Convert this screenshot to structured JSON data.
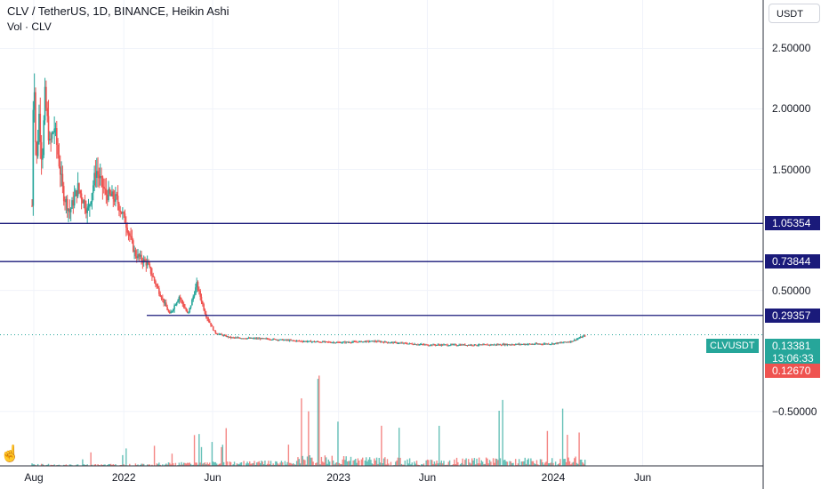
{
  "header": {
    "title": "CLV / TetherUS, 1D, BINANCE, Heikin Ashi",
    "subtitle": "Vol · CLV",
    "currency_button": "USDT"
  },
  "colors": {
    "up": "#26a69a",
    "down": "#ef5350",
    "level_line": "#1a1a7a",
    "last_price": "#26a69a",
    "prev_close": "#ef5350",
    "grid": "#f0f3fa"
  },
  "icons": {
    "cursor": "hand-pointer-icon"
  },
  "chart_data": {
    "type": "candlestick",
    "symbol": "CLVUSDT",
    "chart_style": "Heikin Ashi",
    "interval": "1D",
    "exchange": "BINANCE",
    "x_tick_labels": [
      "Aug",
      "2022",
      "Jun",
      "2023",
      "Jun",
      "2024",
      "Jun"
    ],
    "x_tick_months": [
      "2021-08",
      "2022-01",
      "2022-06",
      "2023-01",
      "2023-06",
      "2024-01",
      "2024-06"
    ],
    "y_tick_labels": [
      "2.50000",
      "2.00000",
      "1.50000",
      "0.50000",
      "−0.50000"
    ],
    "y_ticks": [
      2.5,
      2.0,
      1.5,
      0.5,
      -0.5
    ],
    "ylim": [
      -0.95,
      2.9
    ],
    "grid": true,
    "horizontal_levels": [
      {
        "label": "1.05354",
        "value": 1.05354,
        "from": "2021-07"
      },
      {
        "label": "0.73844",
        "value": 0.73844,
        "from": "2021-07"
      },
      {
        "label": "0.29357",
        "value": 0.29357,
        "from": "2022-04"
      }
    ],
    "last_price": {
      "value": 0.13381,
      "label": "0.13381",
      "countdown": "13:06:33"
    },
    "prev_close": {
      "value": 0.1267,
      "label": "0.12670"
    },
    "price_path": [
      [
        "2021-07-29",
        1.2
      ],
      [
        "2021-08-01",
        2.45
      ],
      [
        "2021-08-05",
        1.5
      ],
      [
        "2021-08-10",
        1.95
      ],
      [
        "2021-08-15",
        1.55
      ],
      [
        "2021-08-20",
        2.1
      ],
      [
        "2021-08-28",
        1.7
      ],
      [
        "2021-09-05",
        1.85
      ],
      [
        "2021-09-20",
        1.3
      ],
      [
        "2021-10-01",
        1.15
      ],
      [
        "2021-10-15",
        1.35
      ],
      [
        "2021-11-01",
        1.15
      ],
      [
        "2021-11-15",
        1.5
      ],
      [
        "2021-12-01",
        1.3
      ],
      [
        "2021-12-20",
        1.25
      ],
      [
        "2022-01-05",
        1.05
      ],
      [
        "2022-01-20",
        0.8
      ],
      [
        "2022-02-10",
        0.72
      ],
      [
        "2022-03-01",
        0.5
      ],
      [
        "2022-03-20",
        0.3
      ],
      [
        "2022-04-05",
        0.45
      ],
      [
        "2022-04-20",
        0.3
      ],
      [
        "2022-05-05",
        0.55
      ],
      [
        "2022-05-20",
        0.3
      ],
      [
        "2022-06-05",
        0.15
      ],
      [
        "2022-07-01",
        0.11
      ],
      [
        "2022-09-01",
        0.1
      ],
      [
        "2022-11-01",
        0.08
      ],
      [
        "2023-01-01",
        0.07
      ],
      [
        "2023-03-01",
        0.08
      ],
      [
        "2023-06-01",
        0.05
      ],
      [
        "2023-09-01",
        0.05
      ],
      [
        "2024-01-01",
        0.06
      ],
      [
        "2024-02-01",
        0.08
      ],
      [
        "2024-02-25",
        0.13
      ]
    ],
    "volume_path": [
      [
        "2021-08-05",
        0.25
      ],
      [
        "2021-09-15",
        0.12
      ],
      [
        "2022-01-15",
        0.2
      ],
      [
        "2022-03-15",
        0.3
      ],
      [
        "2022-10-15",
        0.5
      ],
      [
        "2022-11-01",
        1.0
      ],
      [
        "2023-06-15",
        0.6
      ],
      [
        "2023-08-01",
        0.75
      ],
      [
        "2023-12-15",
        0.7
      ],
      [
        "2024-02-27",
        0.85
      ]
    ]
  }
}
